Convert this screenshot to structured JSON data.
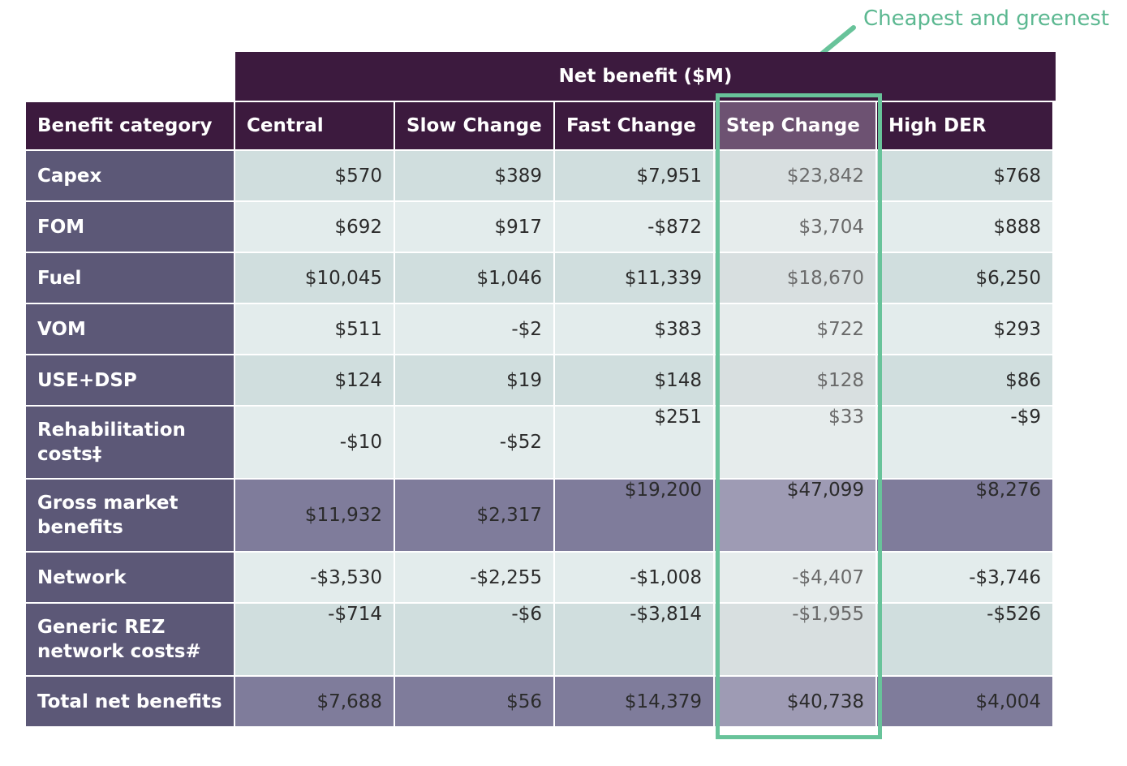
{
  "annotation": {
    "text": "Cheapest and greenest",
    "color": "#5cb891"
  },
  "chart_data": {
    "type": "table",
    "title": "Net benefit ($M)",
    "row_header": "Benefit category",
    "columns": [
      "Central",
      "Slow Change",
      "Fast Change",
      "Step Change",
      "High DER"
    ],
    "highlighted_column": "Step Change",
    "rows": [
      {
        "label": "Capex",
        "values": [
          "$570",
          "$389",
          "$7,951",
          "$23,842",
          "$768"
        ]
      },
      {
        "label": "FOM",
        "values": [
          "$692",
          "$917",
          "-$872",
          "$3,704",
          "$888"
        ]
      },
      {
        "label": "Fuel",
        "values": [
          "$10,045",
          "$1,046",
          "$11,339",
          "$18,670",
          "$6,250"
        ]
      },
      {
        "label": "VOM",
        "values": [
          "$511",
          "-$2",
          "$383",
          "$722",
          "$293"
        ]
      },
      {
        "label": "USE+DSP",
        "values": [
          "$124",
          "$19",
          "$148",
          "$128",
          "$86"
        ]
      },
      {
        "label": "Rehabilitation costs‡",
        "values": [
          "-$10",
          "-$52",
          "$251",
          "$33",
          "-$9"
        ]
      },
      {
        "label": "Gross market benefits",
        "values": [
          "$11,932",
          "$2,317",
          "$19,200",
          "$47,099",
          "$8,276"
        ]
      },
      {
        "label": "Network",
        "values": [
          "-$3,530",
          "-$2,255",
          "-$1,008",
          "-$4,407",
          "-$3,746"
        ]
      },
      {
        "label": "Generic REZ network costs#",
        "values": [
          "-$714",
          "-$6",
          "-$3,814",
          "-$1,955",
          "-$526"
        ]
      },
      {
        "label": "Total net benefits",
        "values": [
          "$7,688",
          "$56",
          "$14,379",
          "$40,738",
          "$4,004"
        ]
      }
    ]
  },
  "colors": {
    "header": "#3c1a3e",
    "row_label": "#5c5877",
    "summary_row": "#7f7c9b",
    "highlight_border": "#68c39a"
  }
}
